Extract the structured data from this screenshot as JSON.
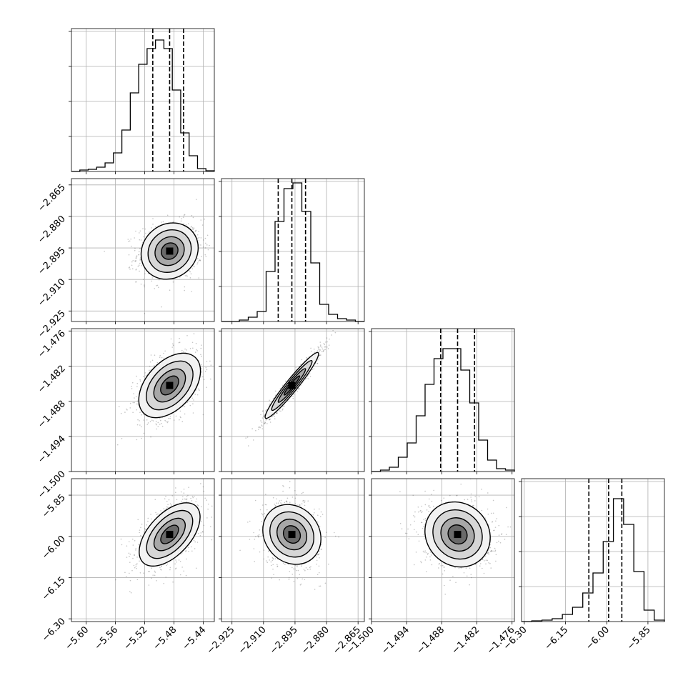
{
  "chart_data": {
    "type": "corner",
    "grid": true,
    "parameters": [
      {
        "range": [
          -5.62,
          -5.425
        ],
        "ticks": [
          "−5.60",
          "−5.56",
          "−5.52",
          "−5.48",
          "−5.44"
        ],
        "tick_values": [
          -5.6,
          -5.56,
          -5.52,
          -5.48,
          -5.44
        ],
        "quantiles": [
          -5.509,
          -5.486,
          -5.467
        ],
        "hist": [
          0.0,
          0.01,
          0.015,
          0.03,
          0.06,
          0.13,
          0.29,
          0.55,
          0.75,
          0.86,
          0.92,
          0.86,
          0.57,
          0.27,
          0.11,
          0.02,
          0.005
        ]
      },
      {
        "range": [
          -2.93,
          -2.862
        ],
        "ticks": [
          "−2.925",
          "−2.910",
          "−2.895",
          "−2.880",
          "−2.865"
        ],
        "tick_values": [
          -2.925,
          -2.91,
          -2.895,
          -2.88,
          -2.865
        ],
        "quantiles": [
          -2.903,
          -2.8965,
          -2.89
        ],
        "hist": [
          0.0,
          0.0,
          0.01,
          0.03,
          0.07,
          0.35,
          0.7,
          0.93,
          0.97,
          0.77,
          0.41,
          0.12,
          0.05,
          0.02,
          0.01,
          0.0
        ]
      },
      {
        "range": [
          -1.5,
          -1.4756
        ],
        "ticks": [
          "−1.500",
          "−1.494",
          "−1.488",
          "−1.482",
          "−1.476"
        ],
        "tick_values": [
          -1.5,
          -1.494,
          -1.488,
          -1.482,
          -1.476
        ],
        "quantiles": [
          -1.4882,
          -1.4853,
          -1.4824
        ],
        "hist": [
          0.0,
          0.01,
          0.03,
          0.1,
          0.2,
          0.39,
          0.61,
          0.79,
          0.86,
          0.86,
          0.71,
          0.48,
          0.22,
          0.08,
          0.02,
          0.01
        ]
      },
      {
        "range": [
          -6.31,
          -5.79
        ],
        "ticks": [
          "−6.30",
          "−6.15",
          "−6.00",
          "−5.85"
        ],
        "tick_values": [
          -6.3,
          -6.15,
          -6.0,
          -5.85
        ],
        "quantiles": [
          -6.065,
          -5.993,
          -5.945
        ],
        "hist": [
          0.0,
          0.005,
          0.01,
          0.02,
          0.05,
          0.1,
          0.2,
          0.34,
          0.56,
          0.86,
          0.68,
          0.35,
          0.08,
          0.01
        ]
      }
    ],
    "correlations": {
      "1_0": 0.12,
      "2_0": 0.45,
      "2_1": 0.96,
      "3_0": 0.55,
      "3_1": -0.15,
      "3_2": -0.1
    }
  }
}
